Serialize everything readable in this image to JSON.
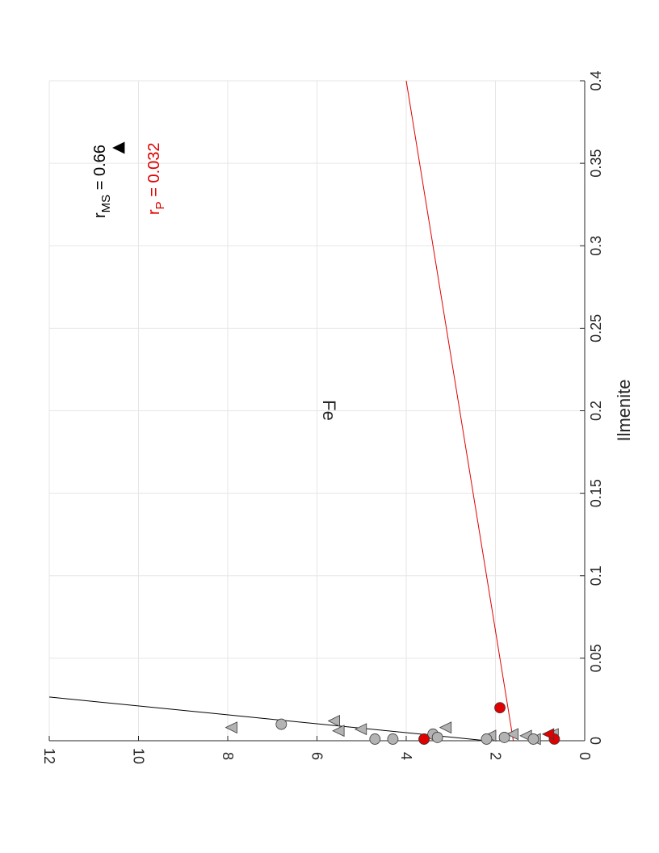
{
  "chart_data": {
    "type": "scatter",
    "orientation": "rotated-90-ccw",
    "xlabel": "Ilmenite",
    "ylabel": "Fe",
    "xlim": [
      0,
      0.4
    ],
    "ylim": [
      0,
      12
    ],
    "xticks": [
      "0",
      "0.05",
      "0.1",
      "0.15",
      "0.2",
      "0.25",
      "0.3",
      "0.35",
      "0.4"
    ],
    "yticks": [
      "0",
      "2",
      "4",
      "6",
      "8",
      "10",
      "12"
    ],
    "grid": true,
    "colors": {
      "gray_fill": "#b3b3b3",
      "red": "#e10000",
      "black": "#000000",
      "grid": "#e6e6e6",
      "axis": "#262626"
    },
    "series": [
      {
        "marker": "triangle",
        "color": "#b3b3b3",
        "points": [
          {
            "x": 0.008,
            "y": 7.9
          },
          {
            "x": 0.012,
            "y": 5.6
          },
          {
            "x": 0.006,
            "y": 5.5
          },
          {
            "x": 0.007,
            "y": 5.0
          },
          {
            "x": 0.008,
            "y": 3.1
          },
          {
            "x": 0.003,
            "y": 2.1
          },
          {
            "x": 0.004,
            "y": 1.6
          },
          {
            "x": 0.003,
            "y": 1.3
          },
          {
            "x": 0.001,
            "y": 1.1
          },
          {
            "x": 0.004,
            "y": 0.7
          }
        ]
      },
      {
        "marker": "circle",
        "color": "#b3b3b3",
        "points": [
          {
            "x": 0.01,
            "y": 6.8
          },
          {
            "x": 0.001,
            "y": 4.7
          },
          {
            "x": 0.001,
            "y": 4.3
          },
          {
            "x": 0.001,
            "y": 3.6
          },
          {
            "x": 0.004,
            "y": 3.4
          },
          {
            "x": 0.002,
            "y": 3.3
          },
          {
            "x": 0.001,
            "y": 2.2
          },
          {
            "x": 0.002,
            "y": 1.8
          },
          {
            "x": 0.001,
            "y": 1.15
          }
        ]
      },
      {
        "marker": "circle",
        "color": "#e10000",
        "points": [
          {
            "x": 0.02,
            "y": 1.9
          },
          {
            "x": 0.001,
            "y": 3.6
          },
          {
            "x": 0.001,
            "y": 0.68
          }
        ]
      },
      {
        "marker": "triangle",
        "color": "#e10000",
        "points": [
          {
            "x": 0.004,
            "y": 0.8
          }
        ]
      }
    ],
    "fit_lines": [
      {
        "color": "#000000",
        "x": [
          0,
          0.0265
        ],
        "y": [
          2.2,
          12
        ]
      },
      {
        "color": "#e10000",
        "x": [
          0,
          0.4
        ],
        "y": [
          1.6,
          4.0
        ]
      }
    ],
    "annotations": [
      {
        "main": "r",
        "sub": "MS",
        "rest": " = 0.66",
        "color": "#000000"
      },
      {
        "main": "r",
        "sub": "P",
        "rest": " = 0.032",
        "color": "#e10000"
      }
    ],
    "annotation_markers": [
      {
        "marker": "triangle",
        "color": "#000000"
      }
    ]
  }
}
